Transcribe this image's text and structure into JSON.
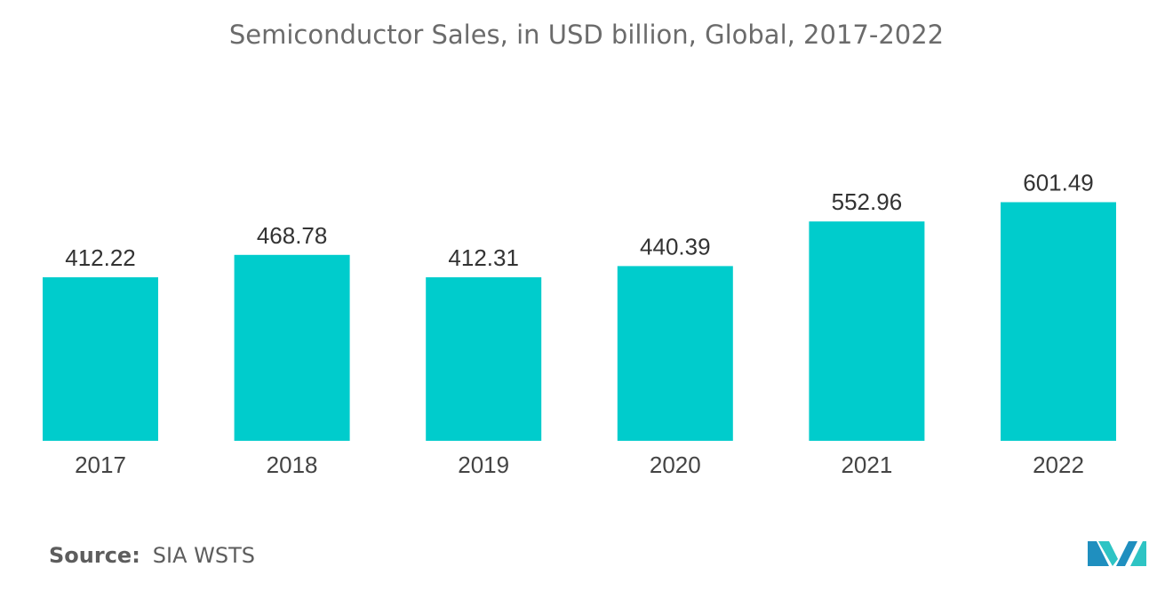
{
  "chart_data": {
    "type": "bar",
    "title": "Semiconductor Sales, in USD billion, Global, 2017-2022",
    "categories": [
      "2017",
      "2018",
      "2019",
      "2020",
      "2021",
      "2022"
    ],
    "values": [
      412.22,
      468.78,
      412.31,
      440.39,
      552.96,
      601.49
    ],
    "data_labels": [
      "412.22",
      "468.78",
      "412.31",
      "440.39",
      "552.96",
      "601.49"
    ],
    "xlabel": "",
    "ylabel": "",
    "ylim": [
      0,
      650
    ],
    "grid": false,
    "legend": "none",
    "bar_color": "#00cccc"
  },
  "source": {
    "label": "Source:",
    "value": "SIA WSTS"
  },
  "logo": {
    "icon": "mordor-intelligence-logo-icon",
    "colors": [
      "#1f8fbf",
      "#2ec4c4"
    ]
  }
}
